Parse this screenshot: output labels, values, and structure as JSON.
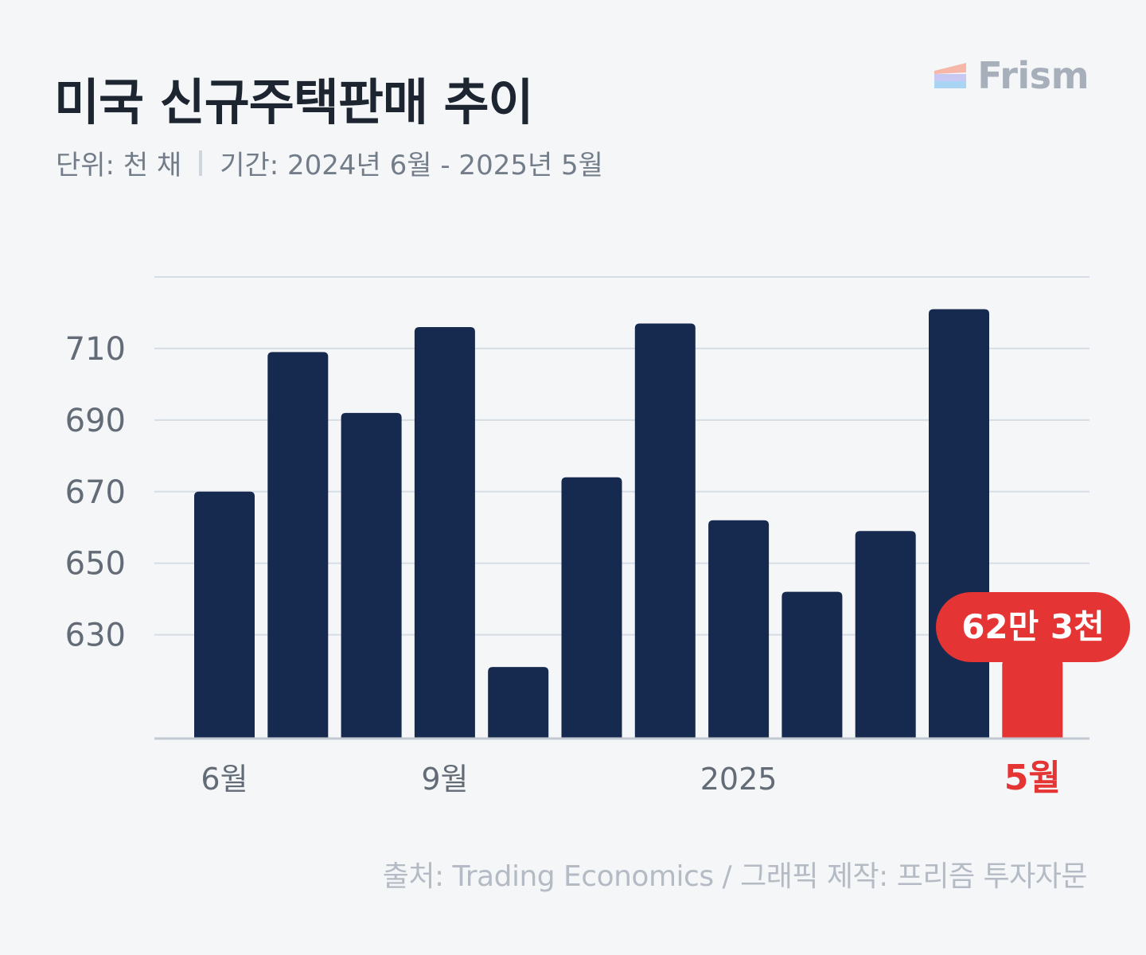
{
  "header": {
    "title": "미국 신규주택판매 추이",
    "unit": "단위: 천 채",
    "period": "기간: 2024년 6월 - 2025년 5월"
  },
  "brand": {
    "name": "Frism"
  },
  "footer": {
    "source": "출처: Trading Economics  / 그래픽 제작: 프리즘 투자자문"
  },
  "colors": {
    "bar": "#16294e",
    "highlight": "#e53434",
    "grid": "#d7dde4",
    "baseline": "#c3c9d1",
    "tick": "#626b76"
  },
  "chart_data": {
    "type": "bar",
    "title": "미국 신규주택판매 추이",
    "xlabel": "",
    "ylabel": "",
    "ylim": [
      601,
      730
    ],
    "yticks": [
      630,
      650,
      670,
      690,
      710
    ],
    "grid": true,
    "categories": [
      "2024-06",
      "2024-07",
      "2024-08",
      "2024-09",
      "2024-10",
      "2024-11",
      "2024-12",
      "2025-01",
      "2025-02",
      "2025-03",
      "2025-04",
      "2025-05"
    ],
    "values": [
      670,
      709,
      692,
      716,
      621,
      674,
      717,
      662,
      642,
      659,
      721,
      623
    ],
    "x_tick_labels": [
      {
        "index": 0,
        "label": "6월"
      },
      {
        "index": 3,
        "label": "9월"
      },
      {
        "index": 7,
        "label": "2025"
      },
      {
        "index": 11,
        "label": "5월"
      }
    ],
    "highlight_index": 11,
    "annotation": {
      "index": 11,
      "text": "62만 3천"
    }
  }
}
